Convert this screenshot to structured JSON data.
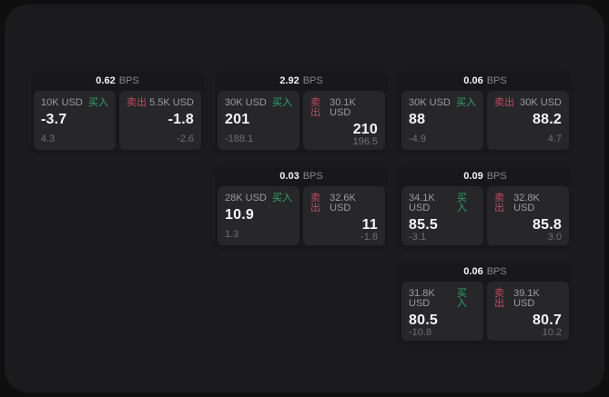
{
  "labels": {
    "bps_unit": "BPS",
    "buy": "买入",
    "sell": "卖出"
  },
  "colors": {
    "buy_green": "#2fa76b",
    "sell_red": "#c1485f",
    "window_bg": "#1b1b1d",
    "card_bg": "#18181a",
    "panel_bg": "#27272a"
  },
  "cards": [
    {
      "bps": "0.62",
      "buy": {
        "amount": "10K USD",
        "value": "-3.7",
        "delta": "4.3"
      },
      "sell": {
        "amount": "5.5K USD",
        "value": "-1.8",
        "delta": "-2.6"
      }
    },
    {
      "bps": "2.92",
      "buy": {
        "amount": "30K USD",
        "value": "201",
        "delta": "-188.1"
      },
      "sell": {
        "amount": "30.1K USD",
        "value": "210",
        "delta": "196.5"
      }
    },
    {
      "bps": "0.06",
      "buy": {
        "amount": "30K USD",
        "value": "88",
        "delta": "-4.9"
      },
      "sell": {
        "amount": "30K USD",
        "value": "88.2",
        "delta": "4.7"
      }
    },
    {
      "bps": "0.03",
      "buy": {
        "amount": "28K USD",
        "value": "10.9",
        "delta": "1.3"
      },
      "sell": {
        "amount": "32.6K USD",
        "value": "11",
        "delta": "-1.8"
      }
    },
    {
      "bps": "0.09",
      "buy": {
        "amount": "34.1K USD",
        "value": "85.5",
        "delta": "-3.1"
      },
      "sell": {
        "amount": "32.8K USD",
        "value": "85.8",
        "delta": "3.0"
      }
    },
    {
      "bps": "0.06",
      "buy": {
        "amount": "31.8K USD",
        "value": "80.5",
        "delta": "-10.8"
      },
      "sell": {
        "amount": "39.1K USD",
        "value": "80.7",
        "delta": "10.2"
      }
    }
  ]
}
